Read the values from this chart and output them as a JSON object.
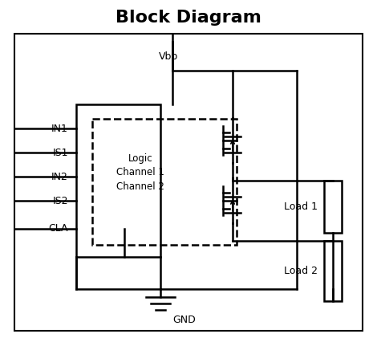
{
  "title": "Block Diagram",
  "title_fontsize": 16,
  "title_fontweight": "bold",
  "bg_color": "#ffffff",
  "line_color": "#000000",
  "text_color": "#000000",
  "figsize": [
    4.7,
    4.26
  ],
  "dpi": 100,
  "vbb_label": "Vbb",
  "gnd_label": "GND",
  "logic_label": "Logic\nChannel 1\nChannel 2",
  "load1_label": "Load 1",
  "load2_label": "Load 2",
  "cla_label": "CLA",
  "pin_labels": [
    "IN1",
    "IS1",
    "IN2",
    "IS2"
  ]
}
